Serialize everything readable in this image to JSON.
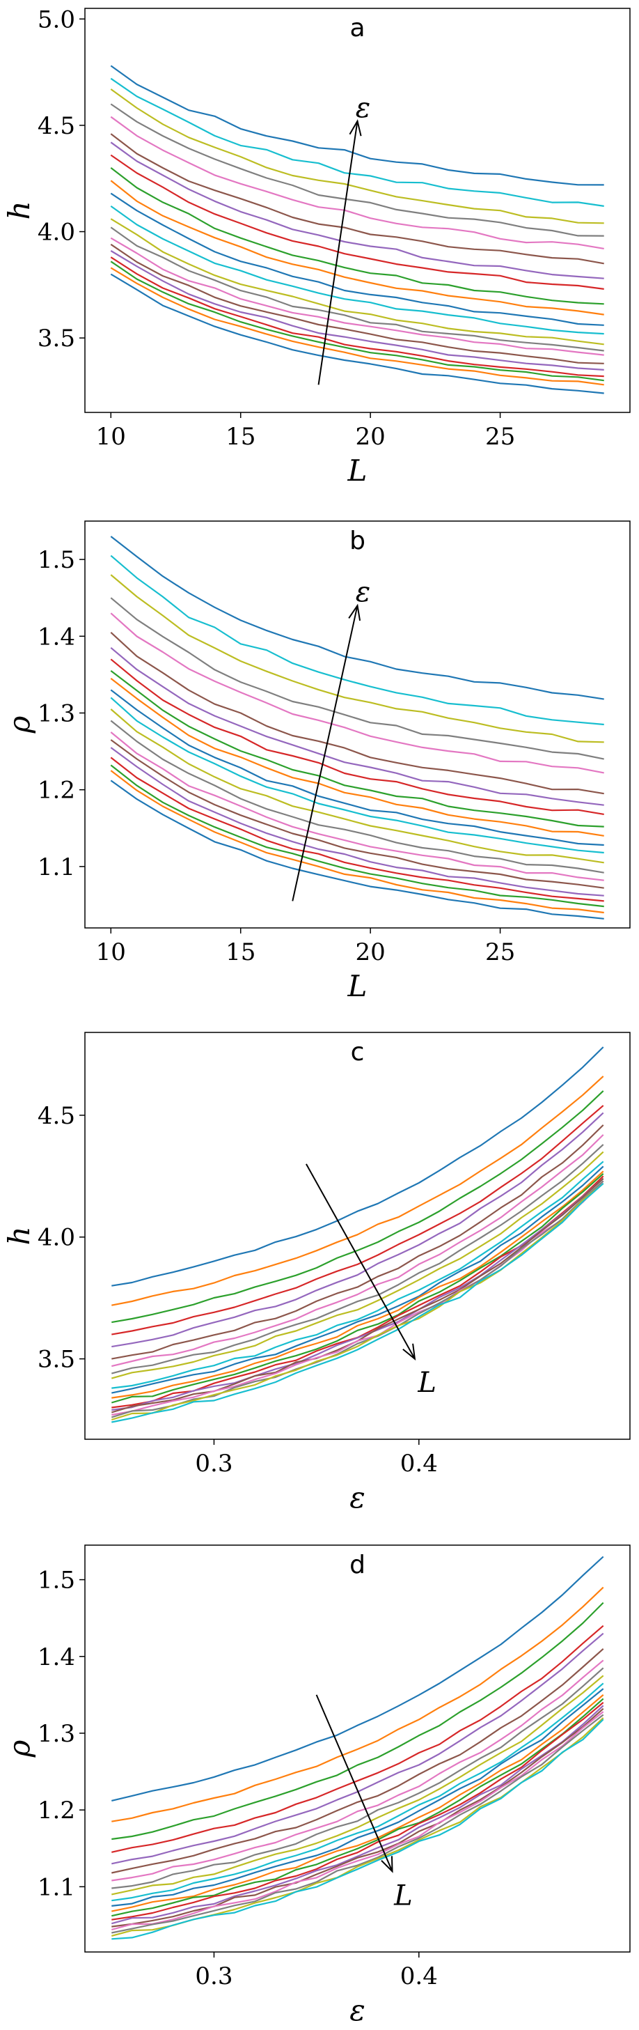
{
  "colors": [
    "#1f77b4",
    "#ff7f0e",
    "#2ca02c",
    "#d62728",
    "#9467bd",
    "#8c564b",
    "#e377c2",
    "#7f7f7f",
    "#bcbd22",
    "#17becf"
  ],
  "chart_data": [
    {
      "panel": "a",
      "type": "line",
      "title": "a",
      "xlabel": "L",
      "ylabel": "h",
      "xlim": [
        9.0,
        30.0
      ],
      "ylim": [
        3.15,
        5.05
      ],
      "xticks": [
        10,
        15,
        20,
        25
      ],
      "yticks": [
        3.5,
        4.0,
        4.5,
        5.0
      ],
      "ytick_labels": [
        "3.5",
        "4.0",
        "4.5",
        "5.0"
      ],
      "arrow": {
        "from": [
          18.0,
          3.28
        ],
        "to": [
          19.5,
          4.52
        ],
        "label": "ε"
      },
      "x": [
        10,
        11,
        12,
        13,
        14,
        15,
        16,
        17,
        18,
        19,
        20,
        21,
        22,
        23,
        24,
        25,
        26,
        27,
        28,
        29
      ],
      "series_ends": [
        {
          "start": 3.8,
          "end": 3.24
        },
        {
          "start": 3.83,
          "end": 3.28
        },
        {
          "start": 3.86,
          "end": 3.3
        },
        {
          "start": 3.88,
          "end": 3.32
        },
        {
          "start": 3.91,
          "end": 3.35
        },
        {
          "start": 3.94,
          "end": 3.38
        },
        {
          "start": 3.97,
          "end": 3.42
        },
        {
          "start": 4.02,
          "end": 3.44
        },
        {
          "start": 4.06,
          "end": 3.47
        },
        {
          "start": 4.12,
          "end": 3.52
        },
        {
          "start": 4.18,
          "end": 3.56
        },
        {
          "start": 4.24,
          "end": 3.61
        },
        {
          "start": 4.3,
          "end": 3.66
        },
        {
          "start": 4.36,
          "end": 3.73
        },
        {
          "start": 4.42,
          "end": 3.78
        },
        {
          "start": 4.46,
          "end": 3.85
        },
        {
          "start": 4.54,
          "end": 3.92
        },
        {
          "start": 4.6,
          "end": 3.98
        },
        {
          "start": 4.67,
          "end": 4.04
        },
        {
          "start": 4.72,
          "end": 4.12
        },
        {
          "start": 4.78,
          "end": 4.22
        }
      ]
    },
    {
      "panel": "b",
      "type": "line",
      "title": "b",
      "xlabel": "L",
      "ylabel": "ρ",
      "xlim": [
        9.0,
        30.0
      ],
      "ylim": [
        1.02,
        1.55
      ],
      "xticks": [
        10,
        15,
        20,
        25
      ],
      "yticks": [
        1.1,
        1.2,
        1.3,
        1.4,
        1.5
      ],
      "ytick_labels": [
        "1.1",
        "1.2",
        "1.3",
        "1.4",
        "1.5"
      ],
      "arrow": {
        "from": [
          17.0,
          1.055
        ],
        "to": [
          19.5,
          1.44
        ],
        "label": "ε"
      },
      "x": [
        10,
        11,
        12,
        13,
        14,
        15,
        16,
        17,
        18,
        19,
        20,
        21,
        22,
        23,
        24,
        25,
        26,
        27,
        28,
        29
      ],
      "series_ends": [
        {
          "start": 1.212,
          "end": 1.032
        },
        {
          "start": 1.225,
          "end": 1.04
        },
        {
          "start": 1.232,
          "end": 1.048
        },
        {
          "start": 1.242,
          "end": 1.055
        },
        {
          "start": 1.255,
          "end": 1.062
        },
        {
          "start": 1.265,
          "end": 1.072
        },
        {
          "start": 1.275,
          "end": 1.082
        },
        {
          "start": 1.29,
          "end": 1.092
        },
        {
          "start": 1.305,
          "end": 1.105
        },
        {
          "start": 1.32,
          "end": 1.118
        },
        {
          "start": 1.33,
          "end": 1.128
        },
        {
          "start": 1.345,
          "end": 1.14
        },
        {
          "start": 1.355,
          "end": 1.152
        },
        {
          "start": 1.37,
          "end": 1.168
        },
        {
          "start": 1.385,
          "end": 1.18
        },
        {
          "start": 1.405,
          "end": 1.195
        },
        {
          "start": 1.43,
          "end": 1.222
        },
        {
          "start": 1.45,
          "end": 1.24
        },
        {
          "start": 1.48,
          "end": 1.262
        },
        {
          "start": 1.505,
          "end": 1.285
        },
        {
          "start": 1.53,
          "end": 1.318
        }
      ]
    },
    {
      "panel": "c",
      "type": "line",
      "title": "c",
      "xlabel": "ε",
      "ylabel": "h",
      "xlim": [
        0.237,
        0.503
      ],
      "ylim": [
        3.17,
        4.84
      ],
      "xticks": [
        0.3,
        0.4
      ],
      "xtick_labels": [
        "0.3",
        "0.4"
      ],
      "yticks": [
        3.5,
        4.0,
        4.5
      ],
      "ytick_labels": [
        "3.5",
        "4.0",
        "4.5"
      ],
      "arrow": {
        "from": [
          0.345,
          4.3
        ],
        "to": [
          0.398,
          3.5
        ],
        "label": "L"
      },
      "x_range": [
        0.25,
        0.49
      ],
      "series_ends": [
        {
          "start": 3.8,
          "end": 4.78
        },
        {
          "start": 3.72,
          "end": 4.66
        },
        {
          "start": 3.65,
          "end": 4.6
        },
        {
          "start": 3.6,
          "end": 4.54
        },
        {
          "start": 3.55,
          "end": 4.51
        },
        {
          "start": 3.5,
          "end": 4.46
        },
        {
          "start": 3.47,
          "end": 4.42
        },
        {
          "start": 3.44,
          "end": 4.38
        },
        {
          "start": 3.42,
          "end": 4.35
        },
        {
          "start": 3.38,
          "end": 4.31
        },
        {
          "start": 3.36,
          "end": 4.29
        },
        {
          "start": 3.34,
          "end": 4.27
        },
        {
          "start": 3.32,
          "end": 4.26
        },
        {
          "start": 3.3,
          "end": 4.25
        },
        {
          "start": 3.29,
          "end": 4.24
        },
        {
          "start": 3.28,
          "end": 4.24
        },
        {
          "start": 3.27,
          "end": 4.23
        },
        {
          "start": 3.26,
          "end": 4.23
        },
        {
          "start": 3.25,
          "end": 4.22
        },
        {
          "start": 3.24,
          "end": 4.22
        }
      ]
    },
    {
      "panel": "d",
      "type": "line",
      "title": "d",
      "xlabel": "ε",
      "ylabel": "ρ",
      "xlim": [
        0.237,
        0.503
      ],
      "ylim": [
        1.015,
        1.545
      ],
      "xticks": [
        0.3,
        0.4
      ],
      "xtick_labels": [
        "0.3",
        "0.4"
      ],
      "yticks": [
        1.1,
        1.2,
        1.3,
        1.4,
        1.5
      ],
      "ytick_labels": [
        "1.1",
        "1.2",
        "1.3",
        "1.4",
        "1.5"
      ],
      "arrow": {
        "from": [
          0.35,
          1.35
        ],
        "to": [
          0.387,
          1.12
        ],
        "label": "L"
      },
      "x_range": [
        0.25,
        0.49
      ],
      "series_ends": [
        {
          "start": 1.212,
          "end": 1.53
        },
        {
          "start": 1.185,
          "end": 1.49
        },
        {
          "start": 1.162,
          "end": 1.47
        },
        {
          "start": 1.145,
          "end": 1.44
        },
        {
          "start": 1.13,
          "end": 1.43
        },
        {
          "start": 1.118,
          "end": 1.41
        },
        {
          "start": 1.108,
          "end": 1.395
        },
        {
          "start": 1.098,
          "end": 1.385
        },
        {
          "start": 1.09,
          "end": 1.375
        },
        {
          "start": 1.082,
          "end": 1.365
        },
        {
          "start": 1.075,
          "end": 1.358
        },
        {
          "start": 1.068,
          "end": 1.35
        },
        {
          "start": 1.062,
          "end": 1.345
        },
        {
          "start": 1.057,
          "end": 1.34
        },
        {
          "start": 1.052,
          "end": 1.336
        },
        {
          "start": 1.048,
          "end": 1.332
        },
        {
          "start": 1.044,
          "end": 1.328
        },
        {
          "start": 1.04,
          "end": 1.324
        },
        {
          "start": 1.036,
          "end": 1.32
        },
        {
          "start": 1.032,
          "end": 1.318
        }
      ]
    }
  ]
}
